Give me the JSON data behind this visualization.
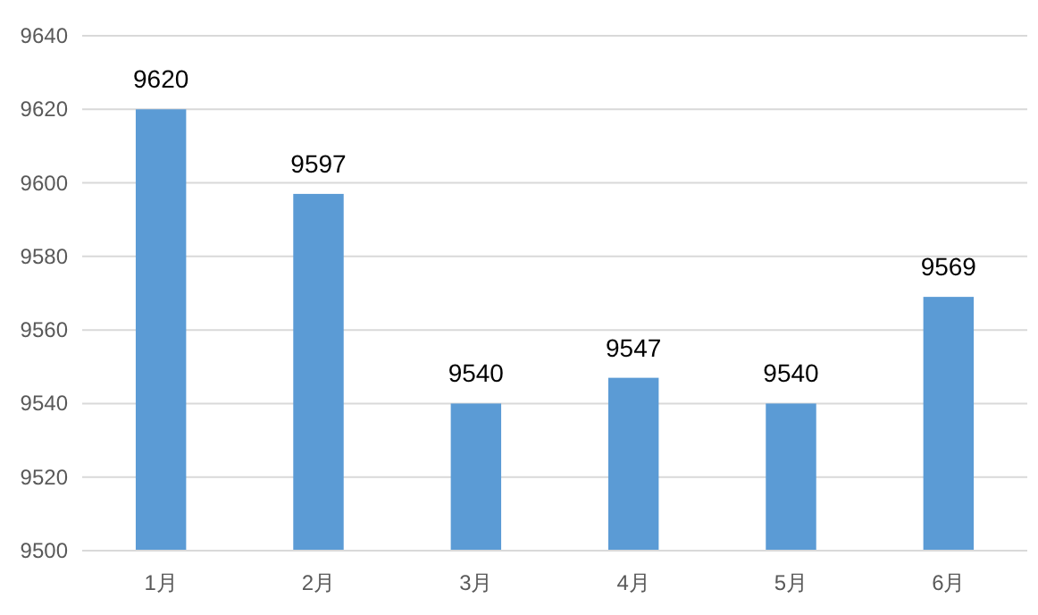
{
  "chart_data": {
    "type": "bar",
    "categories": [
      "1月",
      "2月",
      "3月",
      "4月",
      "5月",
      "6月"
    ],
    "values": [
      9620,
      9597,
      9540,
      9547,
      9540,
      9569
    ],
    "color": "#5b9bd5",
    "ylim": [
      9500,
      9640
    ],
    "yticks": [
      9500,
      9520,
      9540,
      9560,
      9580,
      9600,
      9620,
      9640
    ],
    "grid": "y",
    "data_labels": true
  }
}
